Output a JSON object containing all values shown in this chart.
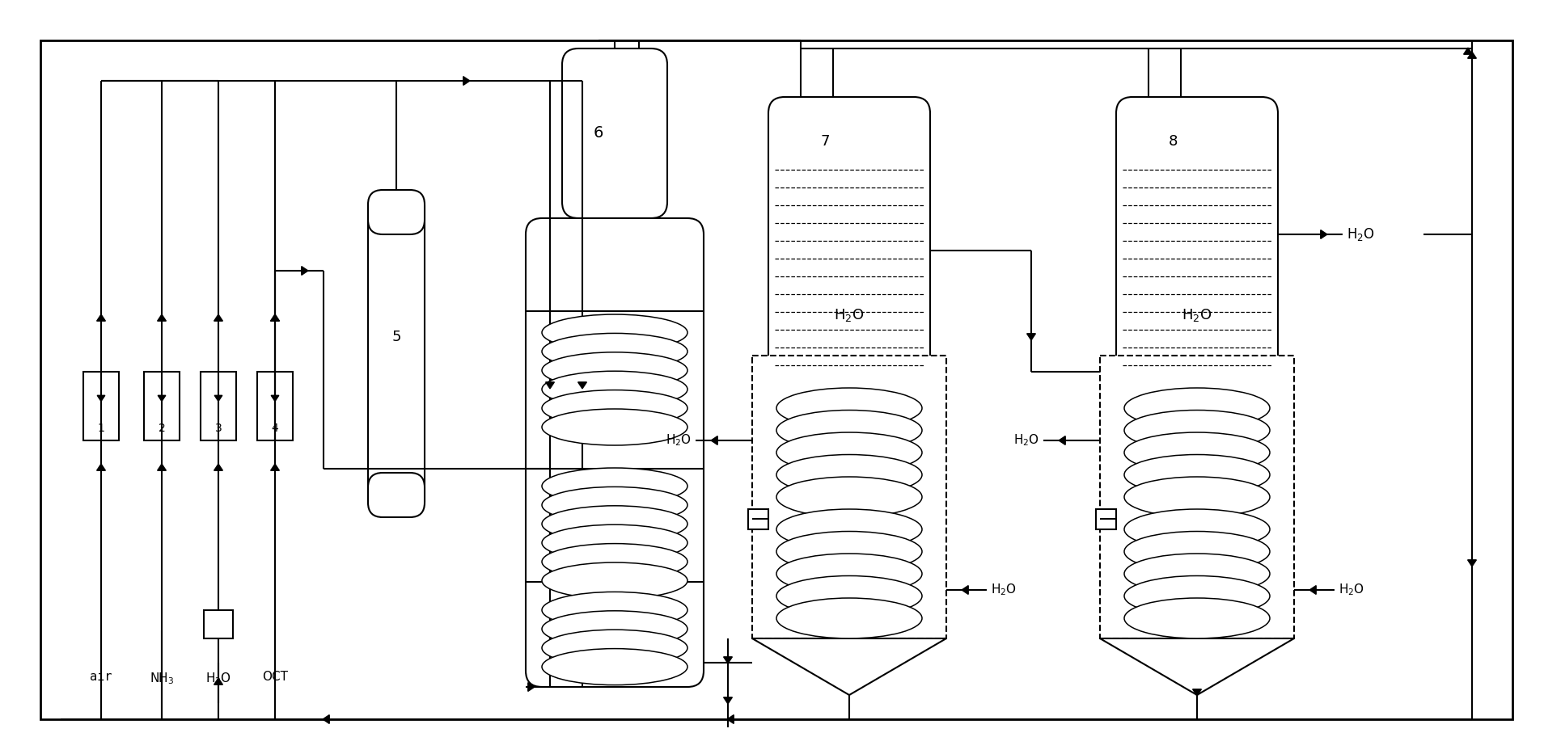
{
  "bg_color": "#ffffff",
  "line_color": "#000000",
  "fig_width": 19.09,
  "fig_height": 9.33,
  "dpi": 100,
  "lw": 1.5
}
